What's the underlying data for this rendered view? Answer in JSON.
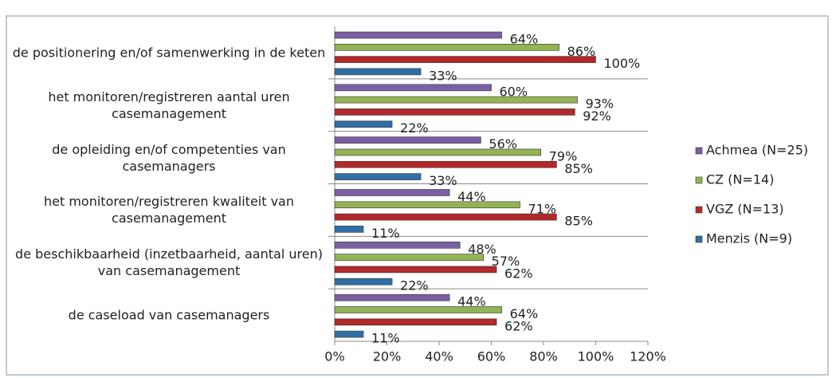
{
  "chart_data": {
    "type": "bar",
    "orientation": "horizontal",
    "categories": [
      "de positionering en/of samenwerking in de keten",
      "het monitoren/registreren aantal uren casemanagement",
      "de opleiding en/of competenties van casemanagers",
      "het monitoren/registreren kwaliteit van casemanagement",
      "de beschikbaarheid (inzetbaarheid, aantal uren) van casemanagement",
      "de caseload van casemanagers"
    ],
    "series": [
      {
        "name": "Achmea (N=25)",
        "color": "#7a5fa3",
        "values": [
          64,
          60,
          56,
          44,
          48,
          44
        ],
        "value_labels": [
          "64%",
          "60%",
          "56%",
          "44%",
          "48%",
          "44%"
        ]
      },
      {
        "name": "CZ (N=14)",
        "color": "#94b354",
        "values": [
          86,
          93,
          79,
          71,
          57,
          64
        ],
        "value_labels": [
          "86%",
          "93%",
          "79%",
          "71%",
          "57%",
          "64%"
        ]
      },
      {
        "name": "VGZ (N=13)",
        "color": "#b3282a",
        "values": [
          100,
          92,
          85,
          85,
          62,
          62
        ],
        "value_labels": [
          "100%",
          "92%",
          "85%",
          "85%",
          "62%",
          "62%"
        ]
      },
      {
        "name": "Menzis (N=9)",
        "color": "#2f6fa5",
        "values": [
          33,
          22,
          33,
          11,
          22,
          11
        ],
        "value_labels": [
          "33%",
          "22%",
          "33%",
          "11%",
          "22%",
          "11%"
        ]
      }
    ],
    "xlim": [
      0,
      120
    ],
    "xticks": [
      {
        "value": 0,
        "label": "0%"
      },
      {
        "value": 20,
        "label": "20%"
      },
      {
        "value": 40,
        "label": "40%"
      },
      {
        "value": 60,
        "label": "60%"
      },
      {
        "value": 80,
        "label": "80%"
      },
      {
        "value": 100,
        "label": "100%"
      },
      {
        "value": 120,
        "label": "120%"
      }
    ],
    "legend": "right"
  }
}
